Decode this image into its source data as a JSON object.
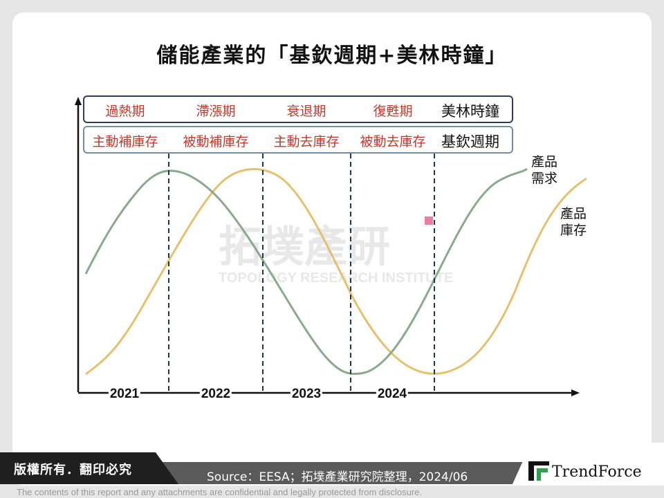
{
  "title": "儲能產業的「基欽週期+美林時鐘」",
  "merrill_clock": {
    "name": "美林時鐘",
    "phases": [
      "過熱期",
      "滯漲期",
      "衰退期",
      "復甦期"
    ]
  },
  "kitchin_cycle": {
    "name": "基欽週期",
    "phases": [
      "主動補庫存",
      "被動補庫存",
      "主動去庫存",
      "被動去庫存"
    ]
  },
  "series": [
    {
      "name": "產品需求",
      "line1": "產品",
      "line2": "需求",
      "color": "#8aa88a"
    },
    {
      "name": "產品庫存",
      "line1": "產品",
      "line2": "庫存",
      "color": "#e5c06e"
    }
  ],
  "years": [
    "2021",
    "2022",
    "2023",
    "2024"
  ],
  "watermark": {
    "text_cn": "拓墣產研",
    "text_en": "TOPOLOGY RESEARCH INSTITUTE"
  },
  "footer": {
    "copyright": "版權所有．翻印必究",
    "source": "Source：EESA；拓墣產業研究院整理，2024/06",
    "logo_text": "TrendForce",
    "disclaimer": "The contents of this report and any attachments are confidential and legally protected from disclosure."
  },
  "colors": {
    "demand": "#8aa88a",
    "inventory": "#e5c06e",
    "phase_text": "#c0392b",
    "band_dark": "#2c3e5c",
    "band_light": "#6f8cae",
    "divider": "#1f3552"
  }
}
